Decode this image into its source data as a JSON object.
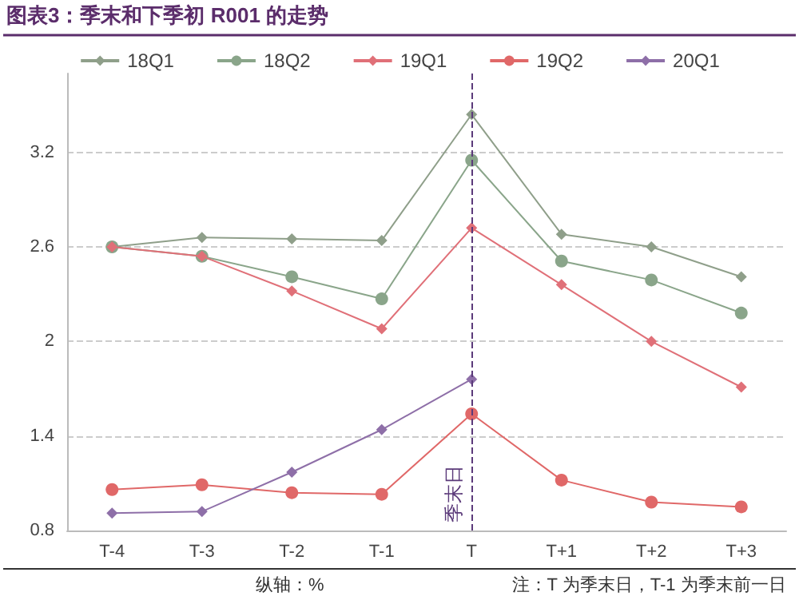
{
  "chart_data": {
    "type": "line",
    "title": "图表3：季末和下季初 R001 的走势",
    "categories": [
      "T-4",
      "T-3",
      "T-2",
      "T-1",
      "T",
      "T+1",
      "T+2",
      "T+3"
    ],
    "series": [
      {
        "name": "18Q1",
        "color": "#8f9f8a",
        "marker": "diamond",
        "values": [
          2.6,
          2.66,
          2.65,
          2.64,
          3.44,
          2.68,
          2.6,
          2.41
        ]
      },
      {
        "name": "18Q2",
        "color": "#8aa58a",
        "marker": "circle",
        "values": [
          2.6,
          2.54,
          2.41,
          2.27,
          3.15,
          2.51,
          2.39,
          2.18
        ]
      },
      {
        "name": "19Q1",
        "color": "#e07078",
        "marker": "diamond",
        "values": [
          2.6,
          2.54,
          2.32,
          2.08,
          2.72,
          2.36,
          2.0,
          1.71
        ]
      },
      {
        "name": "19Q2",
        "color": "#e06868",
        "marker": "circle",
        "values": [
          1.06,
          1.09,
          1.04,
          1.03,
          1.54,
          1.12,
          0.98,
          0.95
        ]
      },
      {
        "name": "20Q1",
        "color": "#8e6fa8",
        "marker": "diamond",
        "values": [
          0.91,
          0.92,
          1.17,
          1.44,
          1.76,
          null,
          null,
          null
        ]
      }
    ],
    "ylim": [
      0.8,
      3.7
    ],
    "yticks": [
      0.8,
      1.4,
      2,
      2.6,
      3.2
    ],
    "grid": "y",
    "legend": "top",
    "line_style": "solid",
    "ref_lines": [
      {
        "axis": "x",
        "value": "T",
        "label": "季末日",
        "color": "#5b3a7a",
        "line_style": "dashed"
      }
    ],
    "annotations": [
      "纵轴：%",
      "注：T 为季末日，T-1 为季末前一日"
    ]
  }
}
